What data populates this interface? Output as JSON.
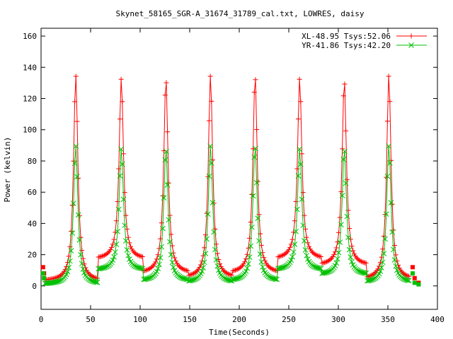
{
  "chart_data": {
    "type": "scatter",
    "title": "Skynet_58165_SGR-A_31674_31789_cal.txt, LOWRES, daisy",
    "xlabel": "Time(Seconds)",
    "ylabel": "Power (kelvin)",
    "xlim": [
      0,
      400
    ],
    "ylim": [
      -15,
      165
    ],
    "xticks": [
      0,
      50,
      100,
      150,
      200,
      250,
      300,
      350,
      400
    ],
    "yticks": [
      0,
      20,
      40,
      60,
      80,
      100,
      120,
      140,
      160
    ],
    "grid": false,
    "legend_position": "top-right",
    "peak_times": [
      35,
      81,
      126,
      171,
      216,
      261,
      306,
      351
    ],
    "series": [
      {
        "name": "XL-48.95 Tsys:52.06",
        "color": "#ff0000",
        "marker": "plus",
        "peak_values": [
          135,
          133,
          133,
          135,
          135,
          133,
          132,
          135
        ],
        "baseline_values": [
          3,
          17,
          8,
          5,
          8,
          17,
          13,
          4
        ],
        "trough_times": [
          12,
          58,
          103,
          148,
          193,
          238,
          283,
          328
        ]
      },
      {
        "name": "YR-41.86 Tsys:42.20",
        "color": "#00c000",
        "marker": "cross",
        "peak_values": [
          90,
          88,
          88,
          90,
          90,
          88,
          88,
          90
        ],
        "baseline_values": [
          1,
          10,
          3,
          2,
          3,
          10,
          7,
          2
        ],
        "trough_times": [
          12,
          58,
          103,
          148,
          193,
          238,
          283,
          328
        ]
      }
    ],
    "endpoint_points": {
      "start_times": [
        2,
        3
      ],
      "end_times": [
        375,
        377,
        381
      ],
      "xl_values": [
        12,
        8,
        12,
        5,
        2
      ],
      "yr_values": [
        8,
        5,
        8,
        2,
        1
      ]
    }
  }
}
